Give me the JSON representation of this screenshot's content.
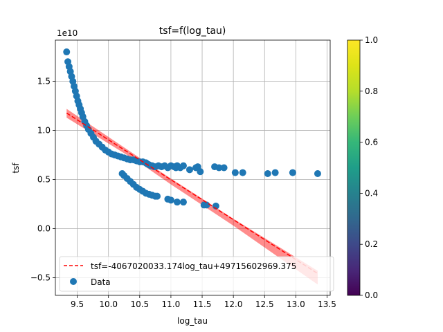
{
  "chart_data": {
    "type": "scatter",
    "title": "tsf=f(log_tau)",
    "xlabel": "log_tau",
    "ylabel": "tsf",
    "y_offset_label": "1e10",
    "xlim": [
      9.15,
      13.55
    ],
    "ylim": [
      -0.68,
      1.92
    ],
    "x_ticks": [
      9.5,
      10.0,
      10.5,
      11.0,
      11.5,
      12.0,
      12.5,
      13.0,
      13.5
    ],
    "x_tick_labels": [
      "9.5",
      "10.0",
      "10.5",
      "11.0",
      "11.5",
      "12.0",
      "12.5",
      "13.0",
      "13.5"
    ],
    "y_ticks": [
      -0.5,
      0.0,
      0.5,
      1.0,
      1.5
    ],
    "y_tick_labels": [
      "−0.5",
      "0.0",
      "0.5",
      "1.0",
      "1.5"
    ],
    "grid": true,
    "legend_position": "lower-left",
    "series": [
      {
        "name": "Data",
        "kind": "scatter",
        "color": "#1f77b4",
        "x": [
          9.33,
          9.35,
          9.37,
          9.39,
          9.41,
          9.43,
          9.45,
          9.47,
          9.49,
          9.51,
          9.53,
          9.55,
          9.57,
          9.59,
          9.62,
          9.65,
          9.68,
          9.72,
          9.76,
          9.8,
          9.85,
          9.9,
          9.95,
          10.0,
          10.05,
          10.1,
          10.15,
          10.2,
          10.25,
          10.3,
          10.35,
          10.4,
          10.45,
          10.5,
          10.55,
          10.6,
          10.62,
          10.65,
          10.68,
          10.7,
          10.73,
          10.75,
          10.8,
          10.85,
          10.9,
          10.95,
          11.0,
          11.05,
          11.08,
          11.1,
          11.15,
          11.2,
          11.3,
          11.4,
          11.43,
          11.47,
          11.7,
          11.77,
          11.85,
          12.03,
          12.15,
          12.55,
          12.67,
          12.95,
          13.35,
          10.22,
          10.25,
          10.3,
          10.35,
          10.4,
          10.45,
          10.5,
          10.55,
          10.6,
          10.65,
          10.7,
          10.75,
          10.78,
          10.95,
          11.0,
          11.1,
          11.2,
          11.53,
          11.57,
          11.72
        ],
        "y": [
          1.8,
          1.7,
          1.65,
          1.6,
          1.55,
          1.5,
          1.45,
          1.4,
          1.35,
          1.3,
          1.26,
          1.22,
          1.18,
          1.14,
          1.09,
          1.05,
          1.01,
          0.97,
          0.93,
          0.89,
          0.86,
          0.83,
          0.8,
          0.78,
          0.76,
          0.75,
          0.74,
          0.73,
          0.72,
          0.71,
          0.7,
          0.7,
          0.69,
          0.68,
          0.68,
          0.67,
          0.66,
          0.65,
          0.64,
          0.64,
          0.63,
          0.63,
          0.64,
          0.63,
          0.64,
          0.62,
          0.64,
          0.63,
          0.62,
          0.64,
          0.62,
          0.64,
          0.6,
          0.62,
          0.63,
          0.58,
          0.63,
          0.62,
          0.62,
          0.57,
          0.57,
          0.56,
          0.57,
          0.57,
          0.56,
          0.56,
          0.54,
          0.51,
          0.48,
          0.45,
          0.42,
          0.4,
          0.38,
          0.36,
          0.35,
          0.34,
          0.33,
          0.33,
          0.3,
          0.29,
          0.27,
          0.27,
          0.24,
          0.24,
          0.23
        ]
      },
      {
        "name": "tsf=-4067020033.174log_tau+49715602969.375",
        "kind": "line",
        "style": "dashed",
        "color": "#ff0000",
        "slope": -0.4067020033174,
        "intercept": 4.9715602969375,
        "x_range": [
          9.33,
          13.35
        ]
      }
    ],
    "confidence_band": {
      "color": "#ff0000",
      "opacity": 0.45,
      "x": [
        9.33,
        10.5,
        11.0,
        12.0,
        13.35
      ],
      "lower": [
        1.13,
        0.67,
        0.45,
        0.03,
        -0.57
      ],
      "upper": [
        1.22,
        0.72,
        0.51,
        0.1,
        -0.43
      ]
    },
    "colorbar": {
      "colormap": "viridis",
      "range": [
        0.0,
        1.0
      ],
      "ticks": [
        0.0,
        0.2,
        0.4,
        0.6,
        0.8,
        1.0
      ],
      "tick_labels": [
        "0.0",
        "0.2",
        "0.4",
        "0.6",
        "0.8",
        "1.0"
      ]
    }
  }
}
